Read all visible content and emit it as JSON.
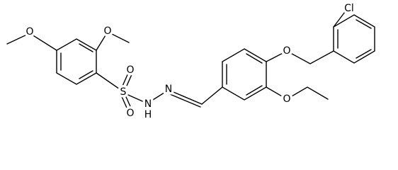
{
  "atoms": [
    "O",
    "O",
    "S",
    "O",
    "O",
    "N",
    "H",
    "N",
    "O",
    "O",
    "Cl"
  ]
}
